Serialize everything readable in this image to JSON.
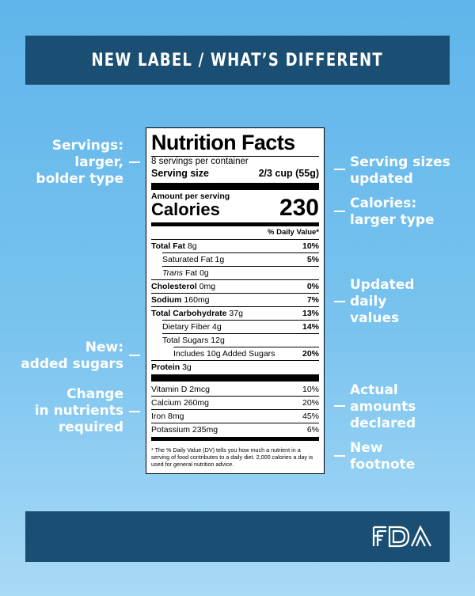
{
  "header": {
    "title": "NEW LABEL / WHAT’S DIFFERENT"
  },
  "annotations_left": [
    {
      "lines": [
        "Servings:",
        "larger,",
        "bolder type"
      ]
    },
    {
      "lines": [
        "New:",
        "added sugars"
      ]
    },
    {
      "lines": [
        "Change",
        "in nutrients",
        "required"
      ]
    }
  ],
  "annotations_right": [
    {
      "lines": [
        "Serving sizes",
        "updated"
      ]
    },
    {
      "lines": [
        "Calories:",
        "larger type"
      ]
    },
    {
      "lines": [
        "Updated",
        "daily",
        "values"
      ]
    },
    {
      "lines": [
        "Actual",
        "amounts",
        "declared"
      ]
    },
    {
      "lines": [
        "New",
        "footnote"
      ]
    }
  ],
  "label": {
    "title": "Nutrition Facts",
    "servings_per_container": "8 servings per container",
    "serving_size_label": "Serving size",
    "serving_size_value": "2/3 cup (55g)",
    "amount_per_serving": "Amount per serving",
    "calories_label": "Calories",
    "calories_value": "230",
    "dv_header": "% Daily Value*",
    "nutrients": [
      {
        "name": "Total Fat",
        "amount": "8g",
        "dv": "10%"
      },
      {
        "name": "Saturated Fat",
        "amount": "1g",
        "dv": "5%"
      },
      {
        "name": "Trans",
        "amount": "Fat 0g",
        "dv": ""
      },
      {
        "name": "Cholesterol",
        "amount": "0mg",
        "dv": "0%"
      },
      {
        "name": "Sodium",
        "amount": "160mg",
        "dv": "7%"
      },
      {
        "name": "Total Carbohydrate",
        "amount": "37g",
        "dv": "13%"
      },
      {
        "name": "Dietary Fiber",
        "amount": "4g",
        "dv": "14%"
      },
      {
        "name": "Total Sugars",
        "amount": "12g",
        "dv": ""
      },
      {
        "name": "Includes 10g Added Sugars",
        "amount": "",
        "dv": "20%"
      },
      {
        "name": "Protein",
        "amount": "3g",
        "dv": ""
      }
    ],
    "vitamins": [
      {
        "name": "Vitamin D 2mcg",
        "dv": "10%"
      },
      {
        "name": "Calcium 260mg",
        "dv": "20%"
      },
      {
        "name": "Iron 8mg",
        "dv": "45%"
      },
      {
        "name": "Potassium 235mg",
        "dv": "6%"
      }
    ],
    "footnote": "* The % Daily Value (DV) tells you how much a nutrient in a serving of food contributes to a daily diet. 2,000 calories a day is used for general nutrition advice."
  },
  "footer": {
    "logo_text": "FDA",
    "logo_icon": "fda-logo-icon"
  }
}
